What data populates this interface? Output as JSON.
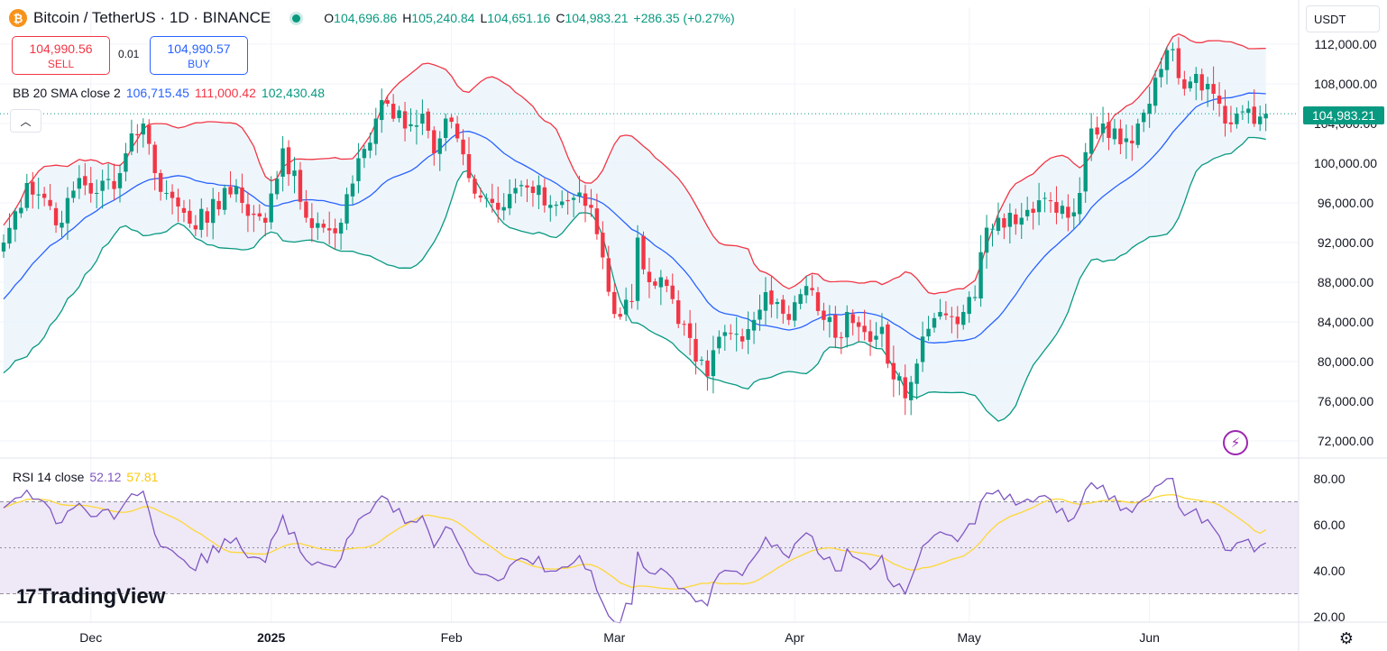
{
  "header": {
    "symbol_title": "Bitcoin / TetherUS · 1D · BINANCE",
    "icon": "bitcoin-icon",
    "ohlc": [
      {
        "k": "O",
        "v": "104,696.86"
      },
      {
        "k": "H",
        "v": "105,240.84"
      },
      {
        "k": "L",
        "v": "104,651.16"
      },
      {
        "k": "C",
        "v": "104,983.21"
      }
    ],
    "change": "+286.35 (+0.27%)"
  },
  "trade": {
    "sell_price": "104,990.56",
    "sell_label": "SELL",
    "spread": "0.01",
    "buy_price": "104,990.57",
    "buy_label": "BUY"
  },
  "bb_legend": {
    "label": "BB 20 SMA close 2",
    "basis": "106,715.45",
    "upper": "111,000.42",
    "lower": "102,430.48"
  },
  "rsi_legend": {
    "label": "RSI 14 close",
    "rsi": "52.12",
    "ma": "57.81"
  },
  "currency": "USDT",
  "current_price": "104,983.21",
  "logo_text": "TradingView",
  "colors": {
    "up": "#089981",
    "down": "#f23645",
    "bb_basis": "#2962ff",
    "bb_upper": "#f23645",
    "bb_lower": "#089981",
    "bb_fill": "#eaf4fb",
    "rsi_line": "#7e57c2",
    "rsi_ma": "#fdd835",
    "rsi_band": "#efe8f7"
  },
  "chart_data": [
    {
      "type": "candlestick",
      "title": "Bitcoin / TetherUS · 1D · BINANCE",
      "x_axis_ticks": [
        "Dec",
        "2025",
        "Feb",
        "Mar",
        "Apr",
        "May",
        "Jun"
      ],
      "y_axis_ticks": [
        "112,000.00",
        "108,000.00",
        "104,000.00",
        "100,000.00",
        "96,000.00",
        "92,000.00",
        "88,000.00",
        "84,000.00",
        "80,000.00",
        "76,000.00",
        "72,000.00"
      ],
      "ylim": [
        72000,
        112000
      ],
      "start_date": "2024-11-16",
      "x_month_starts": [
        "2024-12-01",
        "2025-01-01",
        "2025-02-01",
        "2025-03-01",
        "2025-04-01",
        "2025-05-01",
        "2025-06-01"
      ],
      "close_anchors": [
        [
          0,
          92000
        ],
        [
          4,
          98000
        ],
        [
          7,
          96500
        ],
        [
          10,
          94000
        ],
        [
          13,
          98500
        ],
        [
          16,
          97000
        ],
        [
          20,
          99000
        ],
        [
          22,
          103000
        ],
        [
          24,
          104000
        ],
        [
          26,
          99000
        ],
        [
          28,
          97000
        ],
        [
          31,
          95000
        ],
        [
          35,
          94000
        ],
        [
          38,
          97500
        ],
        [
          41,
          96000
        ],
        [
          45,
          94000
        ],
        [
          48,
          101500
        ],
        [
          52,
          94500
        ],
        [
          55,
          93500
        ],
        [
          58,
          94000
        ],
        [
          61,
          100500
        ],
        [
          64,
          104500
        ],
        [
          66,
          106000
        ],
        [
          69,
          103500
        ],
        [
          72,
          105000
        ],
        [
          74,
          101000
        ],
        [
          76,
          104500
        ],
        [
          78,
          102500
        ],
        [
          80,
          98500
        ],
        [
          84,
          96000
        ],
        [
          88,
          97500
        ],
        [
          91,
          97000
        ],
        [
          94,
          95800
        ],
        [
          98,
          96500
        ],
        [
          101,
          95500
        ],
        [
          103,
          90500
        ],
        [
          105,
          84800
        ],
        [
          108,
          86000
        ],
        [
          109,
          92500
        ],
        [
          111,
          88000
        ],
        [
          113,
          88500
        ],
        [
          116,
          83800
        ],
        [
          119,
          80000
        ],
        [
          121,
          78500
        ],
        [
          123,
          82500
        ],
        [
          126,
          82800
        ],
        [
          129,
          84200
        ],
        [
          131,
          87000
        ],
        [
          133,
          86000
        ],
        [
          135,
          84200
        ],
        [
          137,
          86800
        ],
        [
          139,
          87200
        ],
        [
          141,
          84200
        ],
        [
          143,
          82400
        ],
        [
          145,
          85000
        ],
        [
          147,
          83500
        ],
        [
          149,
          82000
        ],
        [
          151,
          83500
        ],
        [
          153,
          78200
        ],
        [
          155,
          76300
        ],
        [
          157,
          79800
        ],
        [
          159,
          83300
        ],
        [
          161,
          85000
        ],
        [
          163,
          84500
        ],
        [
          165,
          85000
        ],
        [
          167,
          86500
        ],
        [
          169,
          93500
        ],
        [
          171,
          94500
        ],
        [
          173,
          95000
        ],
        [
          175,
          94500
        ],
        [
          177,
          95000
        ],
        [
          179,
          96500
        ],
        [
          181,
          95000
        ],
        [
          183,
          94500
        ],
        [
          185,
          97000
        ],
        [
          187,
          103500
        ],
        [
          189,
          104000
        ],
        [
          191,
          103500
        ],
        [
          193,
          102500
        ],
        [
          195,
          104000
        ],
        [
          197,
          106000
        ],
        [
          199,
          109500
        ],
        [
          201,
          111500
        ],
        [
          203,
          107500
        ],
        [
          205,
          109000
        ],
        [
          207,
          108000
        ],
        [
          208,
          107000
        ],
        [
          209,
          106000
        ],
        [
          210,
          104000
        ],
        [
          212,
          105000
        ],
        [
          214,
          105500
        ],
        [
          216,
          104700
        ],
        [
          217,
          104983
        ]
      ],
      "last_close": 104983.21
    },
    {
      "type": "line",
      "title": "RSI 14 close",
      "y_axis_ticks": [
        "80.00",
        "60.00",
        "40.00",
        "20.00"
      ],
      "ylim": [
        15,
        85
      ],
      "bands": [
        30,
        50,
        70
      ],
      "last_values": {
        "rsi": 52.12,
        "ma": 57.81
      }
    }
  ]
}
